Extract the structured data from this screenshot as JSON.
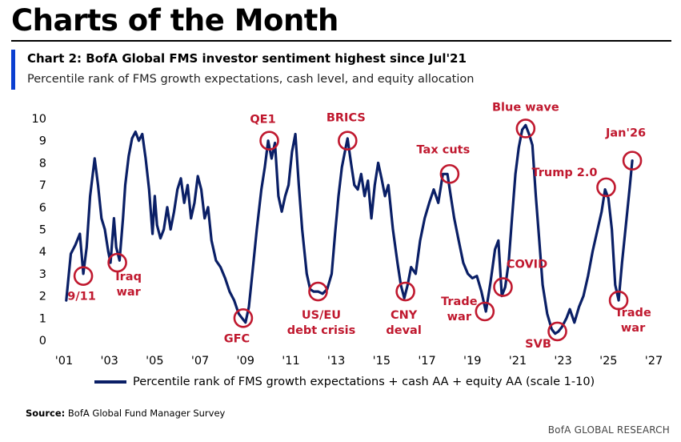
{
  "page_header": "Charts of the Month",
  "chart_title": "Chart 2: BofA Global FMS investor sentiment highest since Jul'21",
  "chart_subtitle": "Percentile rank of FMS growth expectations, cash level, and equity allocation",
  "legend_label": "Percentile rank of FMS growth expectations + cash AA + equity AA (scale 1-10)",
  "source_label": "Source:",
  "source_text": "BofA Global Fund Manager Survey",
  "brand": "BofA GLOBAL RESEARCH",
  "colors": {
    "line": "#0a1f66",
    "annotation": "#c0192f",
    "accent": "#0b3fd1"
  },
  "chart_data": {
    "type": "line",
    "xlim": [
      2001,
      2027
    ],
    "ylim": [
      0,
      10
    ],
    "x_ticks": [
      2001,
      2003,
      2005,
      2007,
      2009,
      2011,
      2013,
      2015,
      2017,
      2019,
      2021,
      2023,
      2025,
      2027
    ],
    "x_tick_labels": [
      "'01",
      "'03",
      "'05",
      "'07",
      "'09",
      "'11",
      "'13",
      "'15",
      "'17",
      "'19",
      "'21",
      "'23",
      "'25",
      "'27"
    ],
    "y_ticks": [
      0,
      1,
      2,
      3,
      4,
      5,
      6,
      7,
      8,
      9,
      10
    ],
    "grid": false,
    "legend_position": "bottom",
    "series": [
      {
        "points": [
          [
            2001.1,
            1.8
          ],
          [
            2001.3,
            3.9
          ],
          [
            2001.5,
            4.3
          ],
          [
            2001.7,
            4.8
          ],
          [
            2001.85,
            3.0
          ],
          [
            2002.0,
            4.2
          ],
          [
            2002.15,
            6.5
          ],
          [
            2002.35,
            8.2
          ],
          [
            2002.5,
            7.0
          ],
          [
            2002.65,
            5.5
          ],
          [
            2002.8,
            5.0
          ],
          [
            2002.95,
            4.0
          ],
          [
            2003.05,
            3.5
          ],
          [
            2003.2,
            5.5
          ],
          [
            2003.3,
            4.2
          ],
          [
            2003.45,
            3.6
          ],
          [
            2003.6,
            5.5
          ],
          [
            2003.7,
            7.0
          ],
          [
            2003.85,
            8.3
          ],
          [
            2004.0,
            9.1
          ],
          [
            2004.15,
            9.4
          ],
          [
            2004.3,
            9.0
          ],
          [
            2004.45,
            9.3
          ],
          [
            2004.6,
            8.2
          ],
          [
            2004.75,
            6.8
          ],
          [
            2004.9,
            4.8
          ],
          [
            2005.0,
            6.5
          ],
          [
            2005.1,
            5.2
          ],
          [
            2005.25,
            4.6
          ],
          [
            2005.4,
            5.0
          ],
          [
            2005.55,
            6.0
          ],
          [
            2005.7,
            5.0
          ],
          [
            2005.85,
            5.8
          ],
          [
            2006.0,
            6.8
          ],
          [
            2006.15,
            7.3
          ],
          [
            2006.3,
            6.2
          ],
          [
            2006.45,
            7.0
          ],
          [
            2006.6,
            5.5
          ],
          [
            2006.75,
            6.2
          ],
          [
            2006.9,
            7.4
          ],
          [
            2007.05,
            6.8
          ],
          [
            2007.2,
            5.5
          ],
          [
            2007.35,
            6.0
          ],
          [
            2007.5,
            4.5
          ],
          [
            2007.7,
            3.6
          ],
          [
            2007.9,
            3.3
          ],
          [
            2008.1,
            2.8
          ],
          [
            2008.3,
            2.2
          ],
          [
            2008.5,
            1.8
          ],
          [
            2008.7,
            1.2
          ],
          [
            2008.85,
            1.0
          ],
          [
            2009.0,
            0.8
          ],
          [
            2009.15,
            1.5
          ],
          [
            2009.3,
            3.0
          ],
          [
            2009.5,
            5.0
          ],
          [
            2009.7,
            6.8
          ],
          [
            2009.85,
            7.8
          ],
          [
            2010.0,
            9.0
          ],
          [
            2010.15,
            8.2
          ],
          [
            2010.3,
            8.9
          ],
          [
            2010.45,
            6.5
          ],
          [
            2010.6,
            5.8
          ],
          [
            2010.75,
            6.5
          ],
          [
            2010.9,
            7.0
          ],
          [
            2011.05,
            8.5
          ],
          [
            2011.2,
            9.3
          ],
          [
            2011.35,
            7.0
          ],
          [
            2011.5,
            5.0
          ],
          [
            2011.7,
            3.0
          ],
          [
            2011.85,
            2.3
          ],
          [
            2012.0,
            2.2
          ],
          [
            2012.2,
            2.2
          ],
          [
            2012.4,
            2.1
          ],
          [
            2012.6,
            2.3
          ],
          [
            2012.8,
            3.0
          ],
          [
            2012.95,
            4.8
          ],
          [
            2013.1,
            6.5
          ],
          [
            2013.25,
            7.8
          ],
          [
            2013.4,
            8.6
          ],
          [
            2013.5,
            9.1
          ],
          [
            2013.65,
            8.0
          ],
          [
            2013.8,
            7.0
          ],
          [
            2013.95,
            6.8
          ],
          [
            2014.1,
            7.5
          ],
          [
            2014.25,
            6.5
          ],
          [
            2014.4,
            7.2
          ],
          [
            2014.55,
            5.5
          ],
          [
            2014.7,
            7.0
          ],
          [
            2014.85,
            8.0
          ],
          [
            2015.0,
            7.3
          ],
          [
            2015.15,
            6.5
          ],
          [
            2015.3,
            7.0
          ],
          [
            2015.5,
            5.0
          ],
          [
            2015.7,
            3.5
          ],
          [
            2015.85,
            2.5
          ],
          [
            2016.0,
            1.9
          ],
          [
            2016.15,
            2.5
          ],
          [
            2016.3,
            3.3
          ],
          [
            2016.5,
            3.0
          ],
          [
            2016.7,
            4.5
          ],
          [
            2016.9,
            5.5
          ],
          [
            2017.1,
            6.2
          ],
          [
            2017.3,
            6.8
          ],
          [
            2017.5,
            6.2
          ],
          [
            2017.7,
            7.5
          ],
          [
            2017.9,
            7.5
          ],
          [
            2018.05,
            6.5
          ],
          [
            2018.2,
            5.5
          ],
          [
            2018.4,
            4.5
          ],
          [
            2018.6,
            3.5
          ],
          [
            2018.8,
            3.0
          ],
          [
            2019.0,
            2.8
          ],
          [
            2019.2,
            2.9
          ],
          [
            2019.4,
            2.2
          ],
          [
            2019.6,
            1.3
          ],
          [
            2019.8,
            2.6
          ],
          [
            2020.0,
            4.1
          ],
          [
            2020.15,
            4.5
          ],
          [
            2020.3,
            2.0
          ],
          [
            2020.45,
            2.4
          ],
          [
            2020.6,
            3.5
          ],
          [
            2020.75,
            5.5
          ],
          [
            2020.9,
            7.5
          ],
          [
            2021.05,
            8.7
          ],
          [
            2021.2,
            9.5
          ],
          [
            2021.35,
            9.7
          ],
          [
            2021.5,
            9.3
          ],
          [
            2021.65,
            8.8
          ],
          [
            2021.8,
            6.5
          ],
          [
            2021.95,
            4.5
          ],
          [
            2022.1,
            2.5
          ],
          [
            2022.3,
            1.2
          ],
          [
            2022.5,
            0.5
          ],
          [
            2022.65,
            0.3
          ],
          [
            2022.8,
            0.4
          ],
          [
            2022.95,
            0.6
          ],
          [
            2023.15,
            1.0
          ],
          [
            2023.3,
            1.4
          ],
          [
            2023.5,
            0.8
          ],
          [
            2023.7,
            1.5
          ],
          [
            2023.9,
            2.0
          ],
          [
            2024.1,
            2.9
          ],
          [
            2024.3,
            4.0
          ],
          [
            2024.5,
            4.9
          ],
          [
            2024.7,
            5.8
          ],
          [
            2024.85,
            6.8
          ],
          [
            2025.0,
            6.4
          ],
          [
            2025.15,
            5.0
          ],
          [
            2025.3,
            2.5
          ],
          [
            2025.45,
            1.8
          ],
          [
            2025.6,
            3.5
          ],
          [
            2025.8,
            5.5
          ],
          [
            2025.95,
            7.0
          ],
          [
            2026.05,
            8.1
          ]
        ]
      }
    ],
    "annotations": [
      {
        "label": "9/11",
        "x": 2001.85,
        "y": 2.9
      },
      {
        "label": "Iraq\nwar",
        "x": 2003.35,
        "y": 3.5
      },
      {
        "label": "GFC",
        "x": 2008.9,
        "y": 1.0
      },
      {
        "label": "QE1",
        "x": 2010.05,
        "y": 9.0
      },
      {
        "label": "US/EU\ndebt crisis",
        "x": 2012.2,
        "y": 2.2
      },
      {
        "label": "BRICS",
        "x": 2013.5,
        "y": 9.0
      },
      {
        "label": "CNY\ndeval",
        "x": 2016.05,
        "y": 2.2
      },
      {
        "label": "Tax cuts",
        "x": 2018.0,
        "y": 7.5
      },
      {
        "label": "Trade\nwar",
        "x": 2019.55,
        "y": 1.3
      },
      {
        "label": "COVID",
        "x": 2020.35,
        "y": 2.4
      },
      {
        "label": "Blue wave",
        "x": 2021.35,
        "y": 9.55
      },
      {
        "label": "SVB",
        "x": 2022.75,
        "y": 0.4
      },
      {
        "label": "Trump 2.0",
        "x": 2024.9,
        "y": 6.9
      },
      {
        "label": "Trade\nwar",
        "x": 2025.45,
        "y": 1.8
      },
      {
        "label": "Jan'26",
        "x": 2026.05,
        "y": 8.1
      }
    ]
  }
}
